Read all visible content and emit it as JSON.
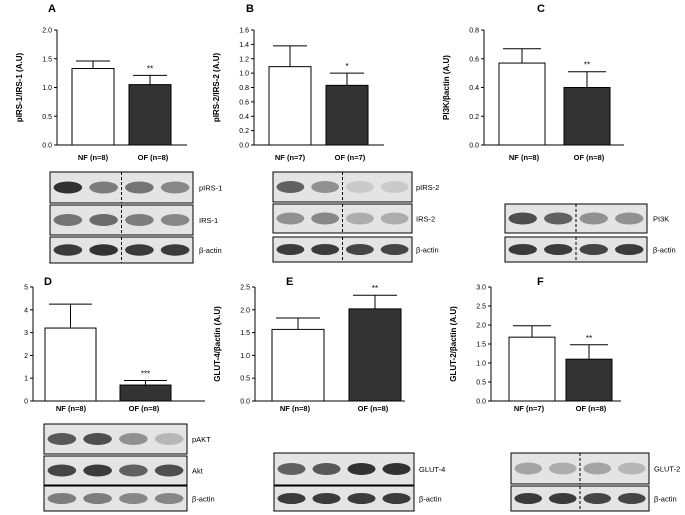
{
  "chart_data": [
    {
      "panel": "A",
      "type": "bar",
      "ylabel": "pIRS-1/IRS-1 (A.U)",
      "ylim": [
        0,
        2.0
      ],
      "yticks": [
        "0.0",
        "0.5",
        "1.0",
        "1.5",
        "2.0"
      ],
      "categories": [
        "NF (n=8)",
        "OF (n=8)"
      ],
      "values": [
        1.33,
        1.05
      ],
      "errors": [
        0.13,
        0.16
      ],
      "significance": [
        "",
        "**"
      ],
      "blot_labels": [
        "pIRS-1",
        "IRS-1",
        "β-actin"
      ]
    },
    {
      "panel": "B",
      "type": "bar",
      "ylabel": "pIRS-2/IRS-2 (A.U)",
      "ylim": [
        0,
        1.6
      ],
      "yticks": [
        "0.0",
        "0.2",
        "0.4",
        "0.6",
        "0.8",
        "1.0",
        "1.2",
        "1.4",
        "1.6"
      ],
      "categories": [
        "NF (n=7)",
        "OF (n=7)"
      ],
      "values": [
        1.09,
        0.83
      ],
      "errors": [
        0.29,
        0.17
      ],
      "significance": [
        "",
        "*"
      ],
      "blot_labels": [
        "pIRS-2",
        "IRS-2",
        "β-actin"
      ]
    },
    {
      "panel": "C",
      "type": "bar",
      "ylabel": "PI3K/βactin (A.U)",
      "ylim": [
        0,
        0.8
      ],
      "yticks": [
        "0.0",
        "0.2",
        "0.4",
        "0.6",
        "0.8"
      ],
      "categories": [
        "NF (n=8)",
        "OF (n=8)"
      ],
      "values": [
        0.57,
        0.4
      ],
      "errors": [
        0.1,
        0.11
      ],
      "significance": [
        "",
        "**"
      ],
      "blot_labels": [
        "PI3K",
        "β-actin"
      ]
    },
    {
      "panel": "D",
      "type": "bar",
      "ylabel": "pAkt/Akt (A.U)",
      "ylim": [
        0,
        5
      ],
      "yticks": [
        "0",
        "1",
        "2",
        "3",
        "4",
        "5"
      ],
      "categories": [
        "NF (n=8)",
        "OF (n=8)"
      ],
      "values": [
        3.2,
        0.7
      ],
      "errors": [
        1.05,
        0.2
      ],
      "significance": [
        "",
        "***"
      ],
      "blot_labels": [
        "pAKT",
        "Akt",
        "β-actin"
      ]
    },
    {
      "panel": "E",
      "type": "bar",
      "ylabel": "GLUT-4/βactin (A.U)",
      "ylim": [
        0,
        2.5
      ],
      "yticks": [
        "0.0",
        "0.5",
        "1.0",
        "1.5",
        "2.0",
        "2.5"
      ],
      "categories": [
        "NF (n=8)",
        "OF (n=8)"
      ],
      "values": [
        1.57,
        2.02
      ],
      "errors": [
        0.25,
        0.3
      ],
      "significance": [
        "",
        "**"
      ],
      "blot_labels": [
        "GLUT-4",
        "β-actin"
      ]
    },
    {
      "panel": "F",
      "type": "bar",
      "ylabel": "GLUT-2/βactin (A.U)",
      "ylim": [
        0,
        3.0
      ],
      "yticks": [
        "0.0",
        "0.5",
        "1.0",
        "1.5",
        "2.0",
        "2.5",
        "3.0"
      ],
      "categories": [
        "NF (n=7)",
        "OF (n=8)"
      ],
      "values": [
        1.68,
        1.1
      ],
      "errors": [
        0.3,
        0.38
      ],
      "significance": [
        "",
        "**"
      ],
      "blot_labels": [
        "GLUT-2",
        "β-actin"
      ]
    }
  ],
  "colors": {
    "nf_bar": "#ffffff",
    "of_bar": "#333333",
    "axis": "#000000",
    "blot_background": "#e4e4e4",
    "band": "#333333"
  }
}
